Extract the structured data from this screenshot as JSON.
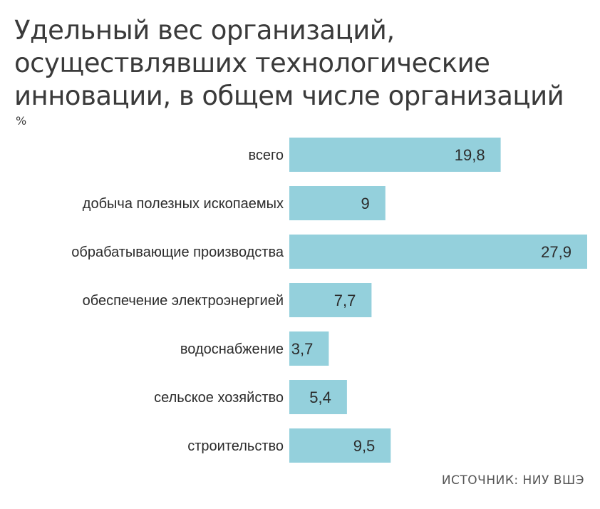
{
  "chart_data": {
    "type": "bar",
    "orientation": "horizontal",
    "title": "Удельный вес организаций, осуществлявших технологические инновации, в общем числе организаций",
    "unit": "%",
    "categories": [
      "всего",
      "добыча полезных ископаемых",
      "обрабатывающие производства",
      "обеспечение электроэнергией",
      "водоснабжение",
      "сельское хозяйство",
      "строительство"
    ],
    "values": [
      19.8,
      9,
      27.9,
      7.7,
      3.7,
      5.4,
      9.5
    ],
    "value_labels": [
      "19,8",
      "9",
      "27,9",
      "7,7",
      "3,7",
      "5,4",
      "9,5"
    ],
    "xlim": [
      0,
      27.9
    ],
    "grid": false,
    "legend": "none",
    "bar_color": "#94d0dc",
    "source": "ИСТОЧНИК: НИУ ВШЭ"
  }
}
